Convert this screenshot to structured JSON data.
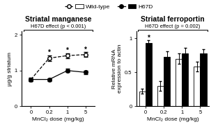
{
  "chart_data": [
    {
      "type": "line",
      "title": "Striatal manganese",
      "xlabel": "MnCl₂ dose (mg/kg)",
      "ylabel": "µg/g striatum",
      "categories": [
        "0",
        "0.2",
        "1",
        "5"
      ],
      "series": [
        {
          "name": "Wild-type",
          "color": "white",
          "marker": "circle",
          "line_style": "dashed",
          "values": [
            0.75,
            1.35,
            1.42,
            1.45
          ],
          "errors": [
            0.05,
            0.08,
            0.07,
            0.07
          ]
        },
        {
          "name": "H67D",
          "color": "black",
          "marker": "circle",
          "line_style": "solid",
          "values": [
            0.75,
            0.75,
            1.0,
            0.95
          ],
          "errors": [
            0.04,
            0.04,
            0.05,
            0.05
          ]
        }
      ],
      "ylim": [
        0,
        2.1
      ],
      "yticks": [
        0,
        1,
        2
      ],
      "legend": "upper center",
      "annotations": [
        {
          "text": "H67D effect (p < 0.001)"
        },
        {
          "text": "*",
          "series": "Wild-type",
          "categories": [
            "0.2",
            "1",
            "5"
          ]
        }
      ]
    },
    {
      "type": "bar",
      "title": "Striatal ferroportin",
      "xlabel": "MnCl₂ dose (mg/kg)",
      "ylabel": "Relative mRNA\nexpression to actin",
      "categories": [
        "0",
        "0.2",
        "1",
        "5"
      ],
      "series": [
        {
          "name": "Wild-type",
          "color": "white",
          "values": [
            0.22,
            0.3,
            0.7,
            0.58
          ],
          "errors": [
            0.04,
            0.07,
            0.08,
            0.07
          ]
        },
        {
          "name": "H67D",
          "color": "black",
          "values": [
            0.93,
            0.73,
            0.78,
            0.78
          ],
          "errors": [
            0.04,
            0.08,
            0.08,
            0.06
          ]
        }
      ],
      "ylim": [
        0,
        1.1
      ],
      "yticks": [
        0,
        0.5,
        1
      ],
      "annotations": [
        {
          "text": "H67D effect (p = 0.002)"
        },
        {
          "text": "*",
          "series": "H67D",
          "categories": [
            "0"
          ]
        }
      ]
    }
  ]
}
